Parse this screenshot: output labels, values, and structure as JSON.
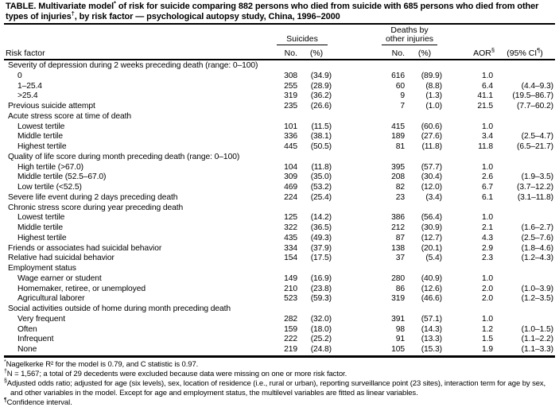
{
  "title": {
    "t1": "TABLE. Multivariate model",
    "sup1": "*",
    "t2": " of risk for suicide comparing 882 persons who died from suicide with 685 persons who died from other types of injuries",
    "sup2": "†",
    "t3": ", by risk factor — psychological autopsy study, China, 1996–2000"
  },
  "header": {
    "risk_factor": "Risk factor",
    "group1": "Suicides",
    "group2_line1": "Deaths by",
    "group2_line2": "other injuries",
    "no_label": "No.",
    "pct_label": "(%)",
    "aor_label": "AOR",
    "aor_sup": "§",
    "ci_pre": "(95% CI",
    "ci_sup": "¶",
    "ci_post": ")"
  },
  "table": {
    "rows": [
      {
        "label": "Severity of depression during 2 weeks preceding death (range: 0–100)",
        "indent": false,
        "no1": "",
        "pct1": "",
        "no2": "",
        "pct2": "",
        "aor": "",
        "ci": ""
      },
      {
        "label": "0",
        "indent": true,
        "no1": "308",
        "pct1": "(34.9)",
        "no2": "616",
        "pct2": "(89.9)",
        "aor": "1.0",
        "ci": ""
      },
      {
        "label": "1–25.4",
        "indent": true,
        "no1": "255",
        "pct1": "(28.9)",
        "no2": "60",
        "pct2": "(8.8)",
        "aor": "6.4",
        "ci": "(4.4–9.3)"
      },
      {
        "label": ">25.4",
        "indent": true,
        "no1": "319",
        "pct1": "(36.2)",
        "no2": "9",
        "pct2": "(1.3)",
        "aor": "41.1",
        "ci": "(19.5–86.7)"
      },
      {
        "label": "Previous suicide attempt",
        "indent": false,
        "no1": "235",
        "pct1": "(26.6)",
        "no2": "7",
        "pct2": "(1.0)",
        "aor": "21.5",
        "ci": "(7.7–60.2)"
      },
      {
        "label": "Acute stress score at time of death",
        "indent": false,
        "no1": "",
        "pct1": "",
        "no2": "",
        "pct2": "",
        "aor": "",
        "ci": ""
      },
      {
        "label": "Lowest tertile",
        "indent": true,
        "no1": "101",
        "pct1": "(11.5)",
        "no2": "415",
        "pct2": "(60.6)",
        "aor": "1.0",
        "ci": ""
      },
      {
        "label": "Middle tertile",
        "indent": true,
        "no1": "336",
        "pct1": "(38.1)",
        "no2": "189",
        "pct2": "(27.6)",
        "aor": "3.4",
        "ci": "(2.5–4.7)"
      },
      {
        "label": "Highest tertile",
        "indent": true,
        "no1": "445",
        "pct1": "(50.5)",
        "no2": "81",
        "pct2": "(11.8)",
        "aor": "11.8",
        "ci": "(6.5–21.7)"
      },
      {
        "label": "Quality of life score during month preceding death (range: 0–100)",
        "indent": false,
        "no1": "",
        "pct1": "",
        "no2": "",
        "pct2": "",
        "aor": "",
        "ci": ""
      },
      {
        "label": "High tertile (>67.0)",
        "indent": true,
        "no1": "104",
        "pct1": "(11.8)",
        "no2": "395",
        "pct2": "(57.7)",
        "aor": "1.0",
        "ci": ""
      },
      {
        "label": "Middle tertile (52.5–67.0)",
        "indent": true,
        "no1": "309",
        "pct1": "(35.0)",
        "no2": "208",
        "pct2": "(30.4)",
        "aor": "2.6",
        "ci": "(1.9–3.5)"
      },
      {
        "label": "Low tertile (<52.5)",
        "indent": true,
        "no1": "469",
        "pct1": "(53.2)",
        "no2": "82",
        "pct2": "(12.0)",
        "aor": "6.7",
        "ci": "(3.7–12.2)"
      },
      {
        "label": "Severe life event during 2 days preceding death",
        "indent": false,
        "no1": "224",
        "pct1": "(25.4)",
        "no2": "23",
        "pct2": "(3.4)",
        "aor": "6.1",
        "ci": "(3.1–11.8)"
      },
      {
        "label": "Chronic stress score during year preceding death",
        "indent": false,
        "no1": "",
        "pct1": "",
        "no2": "",
        "pct2": "",
        "aor": "",
        "ci": ""
      },
      {
        "label": "Lowest tertile",
        "indent": true,
        "no1": "125",
        "pct1": "(14.2)",
        "no2": "386",
        "pct2": "(56.4)",
        "aor": "1.0",
        "ci": ""
      },
      {
        "label": "Middle tertile",
        "indent": true,
        "no1": "322",
        "pct1": "(36.5)",
        "no2": "212",
        "pct2": "(30.9)",
        "aor": "2.1",
        "ci": "(1.6–2.7)"
      },
      {
        "label": "Highest tertile",
        "indent": true,
        "no1": "435",
        "pct1": "(49.3)",
        "no2": "87",
        "pct2": "(12.7)",
        "aor": "4.3",
        "ci": "(2.5–7.6)"
      },
      {
        "label": "Friends or associates had suicidal behavior",
        "indent": false,
        "no1": "334",
        "pct1": "(37.9)",
        "no2": "138",
        "pct2": "(20.1)",
        "aor": "2.9",
        "ci": "(1.8–4.6)"
      },
      {
        "label": "Relative had suicidal behavior",
        "indent": false,
        "no1": "154",
        "pct1": "(17.5)",
        "no2": "37",
        "pct2": "(5.4)",
        "aor": "2.3",
        "ci": "(1.2–4.3)"
      },
      {
        "label": "Employment status",
        "indent": false,
        "no1": "",
        "pct1": "",
        "no2": "",
        "pct2": "",
        "aor": "",
        "ci": ""
      },
      {
        "label": "Wage earner or student",
        "indent": true,
        "no1": "149",
        "pct1": "(16.9)",
        "no2": "280",
        "pct2": "(40.9)",
        "aor": "1.0",
        "ci": ""
      },
      {
        "label": "Homemaker, retiree, or unemployed",
        "indent": true,
        "no1": "210",
        "pct1": "(23.8)",
        "no2": "86",
        "pct2": "(12.6)",
        "aor": "2.0",
        "ci": "(1.0–3.9)"
      },
      {
        "label": "Agricultural laborer",
        "indent": true,
        "no1": "523",
        "pct1": "(59.3)",
        "no2": "319",
        "pct2": "(46.6)",
        "aor": "2.0",
        "ci": "(1.2–3.5)"
      },
      {
        "label": "Social activities outside of home during month preceding death",
        "indent": false,
        "no1": "",
        "pct1": "",
        "no2": "",
        "pct2": "",
        "aor": "",
        "ci": ""
      },
      {
        "label": "Very frequent",
        "indent": true,
        "no1": "282",
        "pct1": "(32.0)",
        "no2": "391",
        "pct2": "(57.1)",
        "aor": "1.0",
        "ci": ""
      },
      {
        "label": "Often",
        "indent": true,
        "no1": "159",
        "pct1": "(18.0)",
        "no2": "98",
        "pct2": "(14.3)",
        "aor": "1.2",
        "ci": "(1.0–1.5)"
      },
      {
        "label": "Infrequent",
        "indent": true,
        "no1": "222",
        "pct1": "(25.2)",
        "no2": "91",
        "pct2": "(13.3)",
        "aor": "1.5",
        "ci": "(1.1–2.2)"
      },
      {
        "label": "None",
        "indent": true,
        "no1": "219",
        "pct1": "(24.8)",
        "no2": "105",
        "pct2": "(15.3)",
        "aor": "1.9",
        "ci": "(1.1–3.3)"
      }
    ]
  },
  "footnotes": [
    {
      "marker": "*",
      "text": "Nagelkerke R² for the model is 0.79, and C statistic is 0.97."
    },
    {
      "marker": "†",
      "text": "N = 1,567; a total of 29 decedents were excluded because data were missing on one or more risk factor."
    },
    {
      "marker": "§",
      "text": "Adjusted odds ratio; adjusted for age (six levels), sex, location of residence (i.e., rural or urban), reporting surveillance point (23 sites), interaction term for age by sex, and other variables in the model. Except for age and employment status, the multilevel variables are fitted as linear variables."
    },
    {
      "marker": "¶",
      "text": "Confidence interval."
    }
  ],
  "colors": {
    "text": "#000000",
    "rule": "#000000",
    "background": "#ffffff"
  }
}
